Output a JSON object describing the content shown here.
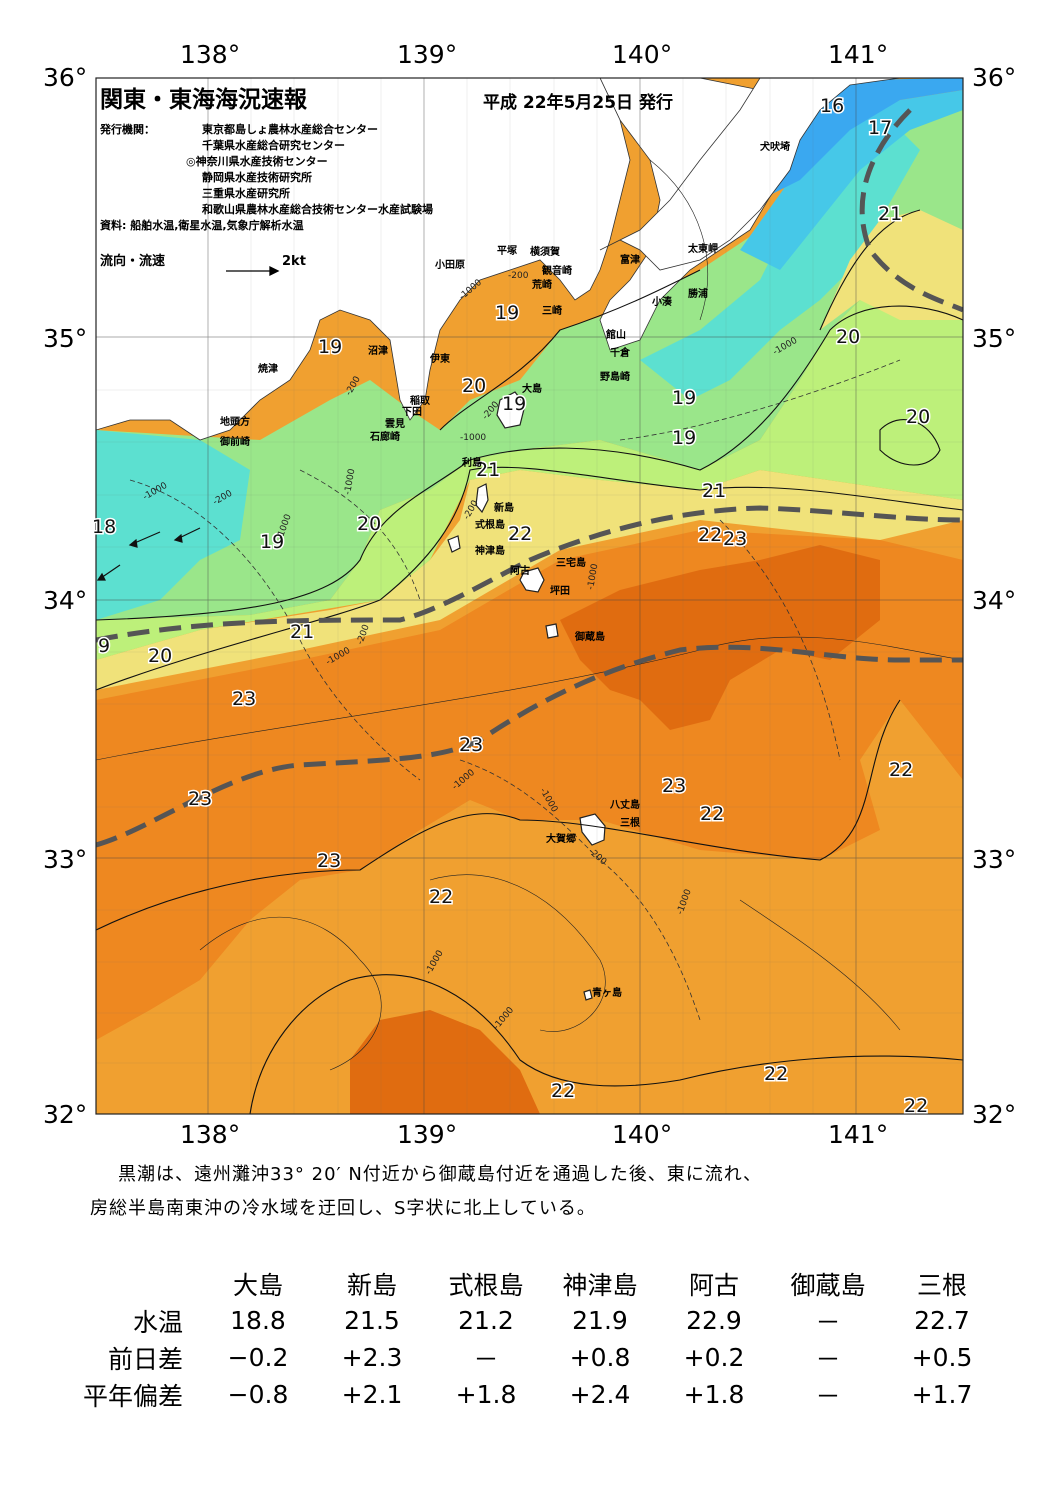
{
  "header": {
    "title": "関東・東海海況速報",
    "date": "平成 22年5月25日 発行",
    "org_label": "発行機関：",
    "orgs": [
      "東京都島しょ農林水産総合センター",
      "千葉県水産総合研究センター",
      "◎神奈川県水産技術センター",
      "静岡県水産技術研究所",
      "三重県水産研究所",
      "和歌山県農林水産総合技術センター水産試験場"
    ],
    "source": "資料: 船舶水温,衛星水温,気象庁解析水温",
    "flow_legend": "流向・流速",
    "flow_scale": "2kt"
  },
  "axes": {
    "lon_labels": [
      "138°",
      "139°",
      "140°",
      "141°"
    ],
    "lat_labels": [
      "36°",
      "35°",
      "34°",
      "33°",
      "32°"
    ]
  },
  "colors": {
    "t16": "#3aa8f0",
    "t17": "#46c8e8",
    "t18": "#5ce0d0",
    "t19": "#9ae68a",
    "t20": "#bdf07a",
    "t21": "#f0e27a",
    "t22": "#f0a030",
    "t23": "#ee8820",
    "t24": "#e06c10",
    "land": "#ffffff",
    "kuroshio": "#555555"
  },
  "temperature_labels": [
    "16",
    "17",
    "21",
    "20",
    "19",
    "19",
    "20",
    "19",
    "19",
    "19",
    "20",
    "21",
    "22",
    "22",
    "23",
    "21",
    "18",
    "19",
    "20",
    "21",
    "20",
    "9",
    "23",
    "23",
    "23",
    "23",
    "22",
    "23",
    "22",
    "22",
    "22",
    "22",
    "22"
  ],
  "place_names": [
    "犬吠埼",
    "太東岬",
    "勝浦",
    "小湊",
    "富津",
    "横須賀",
    "観音崎",
    "平塚",
    "小田原",
    "荒崎",
    "三崎",
    "館山",
    "千倉",
    "野島崎",
    "大島",
    "沼津",
    "伊東",
    "焼津",
    "稲取",
    "下田",
    "雲見",
    "石廊崎",
    "地頭方",
    "御前崎",
    "利島",
    "新島",
    "式根島",
    "神津島",
    "三宅島",
    "阿古",
    "坪田",
    "御蔵島",
    "八丈島",
    "三根",
    "大賀郷",
    "青ヶ島"
  ],
  "contour_depth_labels": [
    "-200",
    "-1000",
    "-200",
    "-1000",
    "-200",
    "-1000",
    "-1000",
    "-200",
    "-1000",
    "-200",
    "-1000",
    "-1000",
    "-1000",
    "-1000",
    "-200",
    "-1000",
    "-1000",
    "-200",
    "-1000",
    "-1000"
  ],
  "description": [
    "黒潮は、遠州灘沖33° 20′ N付近から御蔵島付近を通過した後、東に流れ、",
    "房総半島南東沖の冷水域を迂回し、S字状に北上している。"
  ],
  "table": {
    "columns": [
      "大島",
      "新島",
      "式根島",
      "神津島",
      "阿古",
      "御蔵島",
      "三根"
    ],
    "rows": [
      {
        "label": "水温",
        "values": [
          "18.8",
          "21.5",
          "21.2",
          "21.9",
          "22.9",
          "－",
          "22.7"
        ]
      },
      {
        "label": "前日差",
        "values": [
          "−0.2",
          "+2.3",
          "－",
          "+0.8",
          "+0.2",
          "－",
          "+0.5"
        ]
      },
      {
        "label": "平年偏差",
        "values": [
          "−0.8",
          "+2.1",
          "+1.8",
          "+2.4",
          "+1.8",
          "－",
          "+1.7"
        ]
      }
    ]
  }
}
